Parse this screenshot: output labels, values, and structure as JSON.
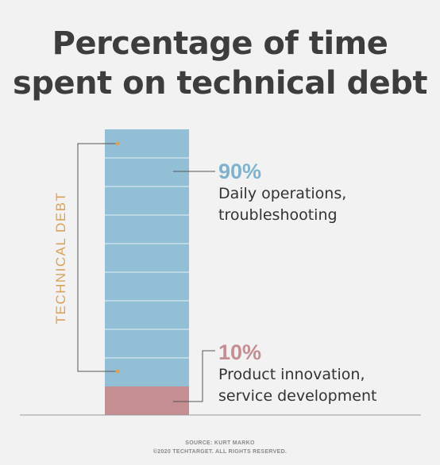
{
  "title_lines": [
    "Percentage of time",
    "spent on technical debt"
  ],
  "bracket_label": "TECHNICAL DEBT",
  "callouts": [
    {
      "pct": "90%",
      "line1": "Daily operations,",
      "line2": "troubleshooting"
    },
    {
      "pct": "10%",
      "line1": "Product innovation,",
      "line2": "service development"
    }
  ],
  "source": {
    "line1": "SOURCE: KURT MARKO",
    "line2": "©2020 TECHTARGET. ALL RIGHTS RESERVED."
  },
  "colors": {
    "blue": "#92bfd6",
    "pink": "#c48e93",
    "accent": "#d9a35b",
    "text": "#3d3d3d",
    "blue_text": "#7fb3cd",
    "pink_text": "#c48e93"
  },
  "chart_data": {
    "type": "bar",
    "stacked": true,
    "categories": [
      ""
    ],
    "series": [
      {
        "name": "Daily operations, troubleshooting",
        "values": [
          90
        ]
      },
      {
        "name": "Product innovation, service development",
        "values": [
          10
        ]
      }
    ],
    "ylim": [
      0,
      100
    ],
    "grid": false
  }
}
